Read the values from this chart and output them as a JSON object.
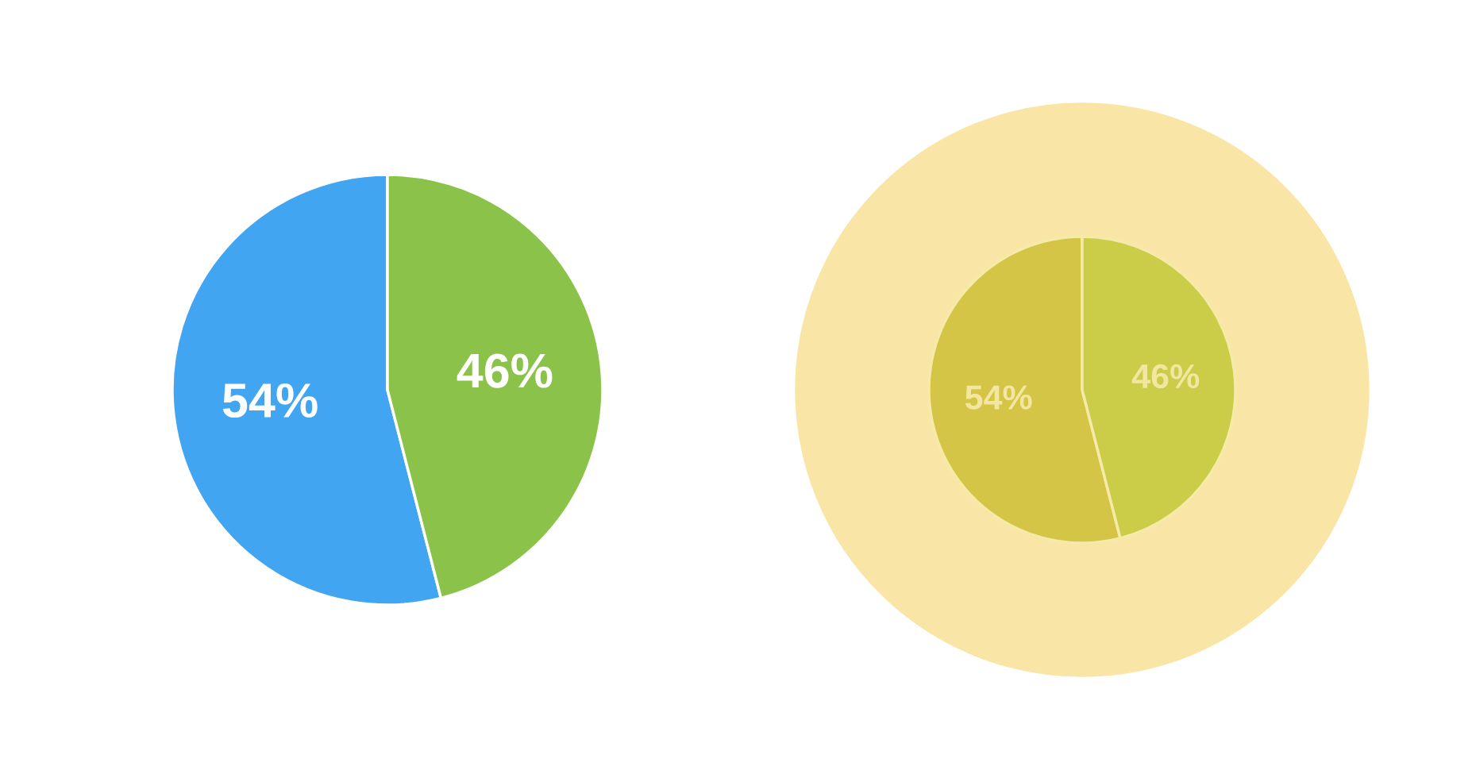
{
  "chart_data": [
    {
      "type": "pie",
      "categories": [
        null,
        null
      ],
      "values": [
        54,
        46
      ],
      "colors": [
        "#42a5f2",
        "#8bc34a"
      ],
      "value_labels": [
        "54%",
        "46%"
      ]
    },
    {
      "type": "pie",
      "categories": [
        null,
        null
      ],
      "values": [
        54,
        46
      ],
      "colors": [
        "#d4c547",
        "#cbcc48"
      ],
      "value_labels": [
        "54%",
        "46%"
      ]
    }
  ]
}
